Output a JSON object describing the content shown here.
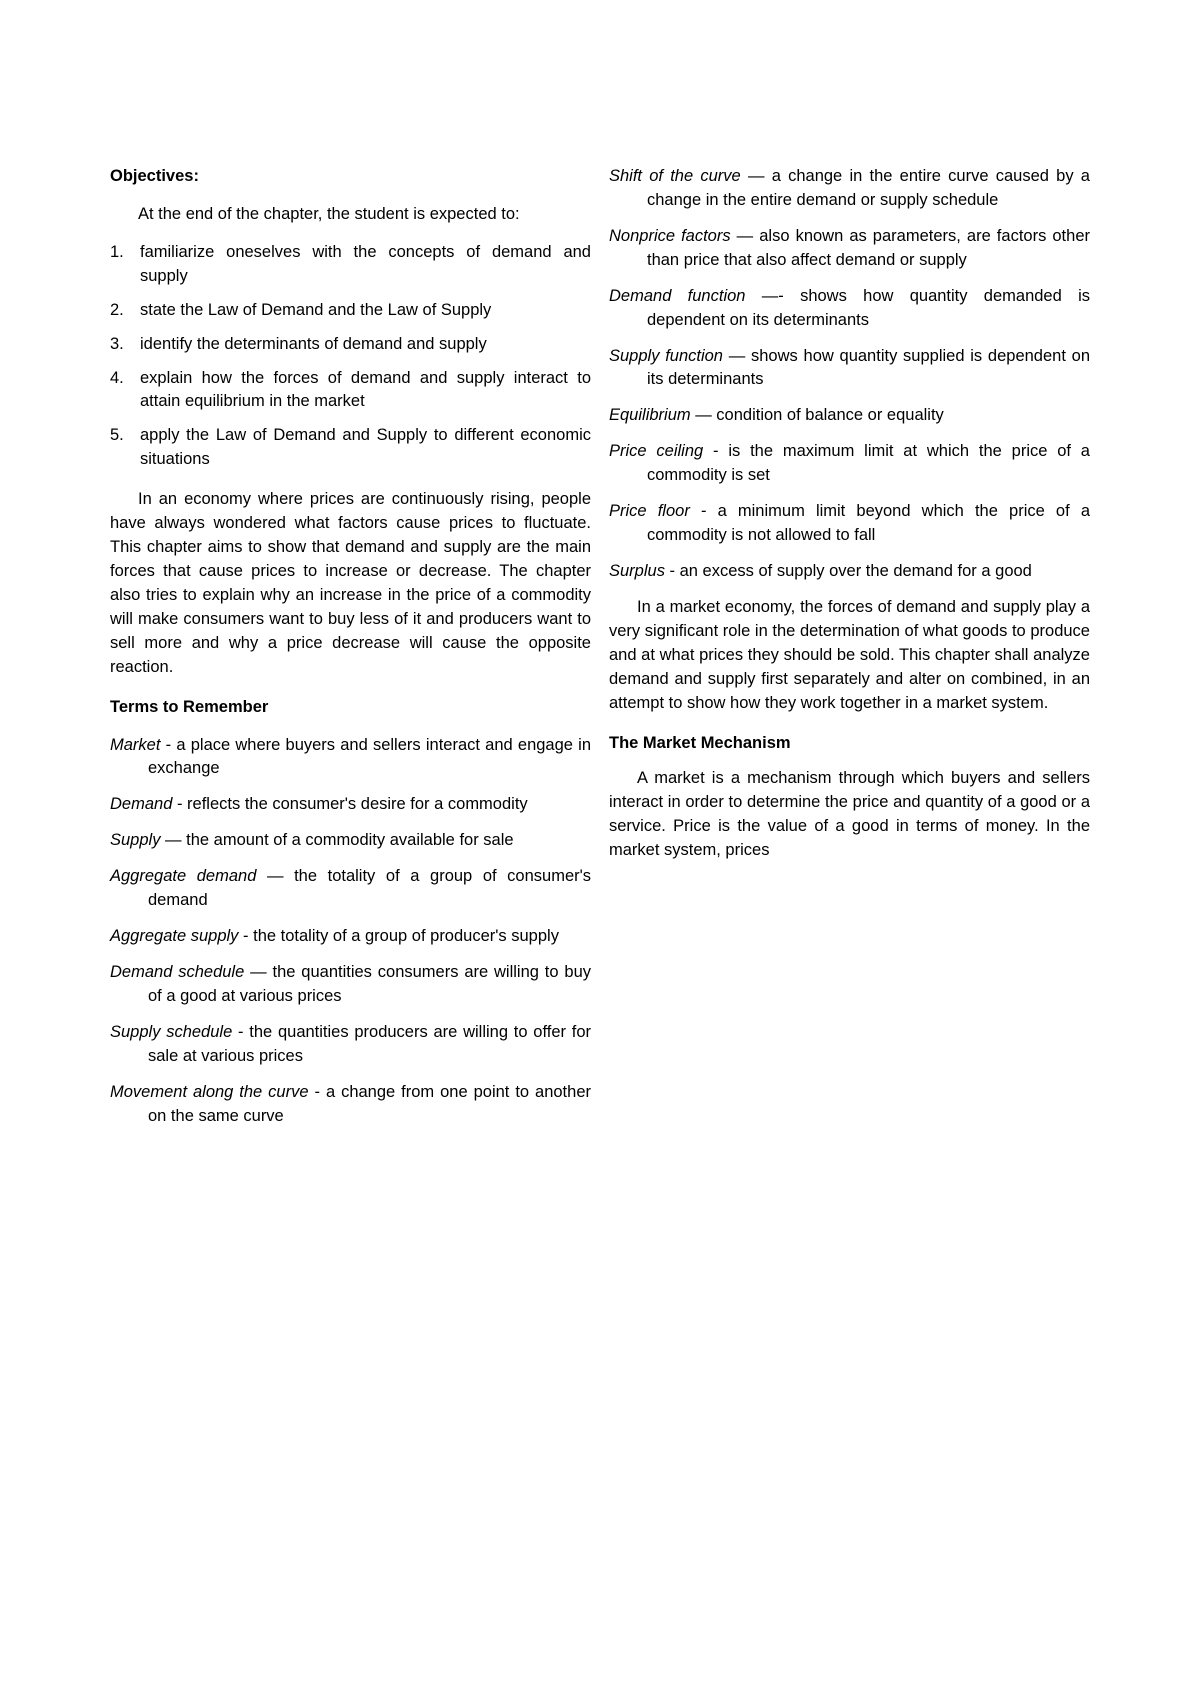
{
  "headings": {
    "objectives": "Objectives:",
    "terms": "Terms to Remember",
    "market_mechanism": "The Market Mechanism"
  },
  "intro": "At the end of the chapter, the student is expected to:",
  "objectives": [
    {
      "num": "1.",
      "text": "familiarize oneselves with the concepts of demand and supply"
    },
    {
      "num": "2.",
      "text": "state the Law of Demand and the Law of Supply"
    },
    {
      "num": "3.",
      "text": "identify the determinants of demand and supply"
    },
    {
      "num": "4.",
      "text": "explain how the forces of demand and supply interact to attain equilibrium in the market"
    },
    {
      "num": "5.",
      "text": "apply the Law of Demand and Supply to different economic situations"
    }
  ],
  "para1": "In an economy where prices are continuously rising, people have always wondered what factors cause prices to fluctuate. This chapter aims to show that demand and supply are the main forces that cause prices to increase or decrease. The chapter also tries to explain why an increase in the price of a commodity will make consumers want to buy less of it and producers want to sell more and why a price decrease will cause the opposite reaction.",
  "terms": [
    {
      "name": "Market",
      "sep": " - ",
      "def": "a place where buyers and sellers interact and engage in exchange"
    },
    {
      "name": "Demand",
      "sep": " - ",
      "def": "reflects the consumer's desire for a commodity"
    },
    {
      "name": "Supply",
      "sep": " — ",
      "def": "the amount of a commodity available for sale"
    },
    {
      "name": "Aggregate demand",
      "sep": " — ",
      "def": "the totality of a group of consumer's demand"
    },
    {
      "name": "Aggregate supply",
      "sep": " - ",
      "def": "the totality of a group of producer's supply"
    },
    {
      "name": "Demand schedule",
      "sep": " — ",
      "def": "the quantities consumers are willing to buy of a good at various prices"
    },
    {
      "name": "Supply schedule",
      "sep": " - ",
      "def": "the quantities producers are willing to offer for sale at various prices"
    },
    {
      "name": "Movement along the curve",
      "sep": " - ",
      "def": "a change from one point to another on the same curve"
    },
    {
      "name": "Shift of the curve",
      "sep": " — ",
      "def": "a change in the entire curve caused by a change in the entire demand or supply schedule"
    },
    {
      "name": "Nonprice factors",
      "sep": " — ",
      "def": "also known as parameters, are factors other than price that also affect demand or supply"
    },
    {
      "name": "Demand function",
      "sep": " —- ",
      "def": "shows how quantity demanded is dependent on its determinants"
    },
    {
      "name": "Supply function",
      "sep": " — ",
      "def": "shows how quantity supplied is dependent on its determinants"
    },
    {
      "name": "Equilibrium",
      "sep": " — ",
      "def": "condition of balance or equality"
    },
    {
      "name": "Price ceiling",
      "sep": " - ",
      "def": "is the maximum limit at which the price of a commodity is set"
    },
    {
      "name": "Price floor",
      "sep": " - ",
      "def": "a minimum limit beyond which the price of a commodity is not allowed to fall"
    },
    {
      "name": "Surplus",
      "sep": " - ",
      "def": "an excess of supply over the demand for a good"
    }
  ],
  "para2": "In a market economy, the forces of demand and supply play a very significant role in the determination of what goods to produce and at what prices they should be sold. This chapter shall analyze demand and supply first separately and alter on combined, in an attempt to show how they work together in a market system.",
  "para3": "A market is a mechanism through which buyers and sellers interact in order to determine the price and quantity of a good or a service. Price is the value of a good in terms of money. In the market system, prices"
}
